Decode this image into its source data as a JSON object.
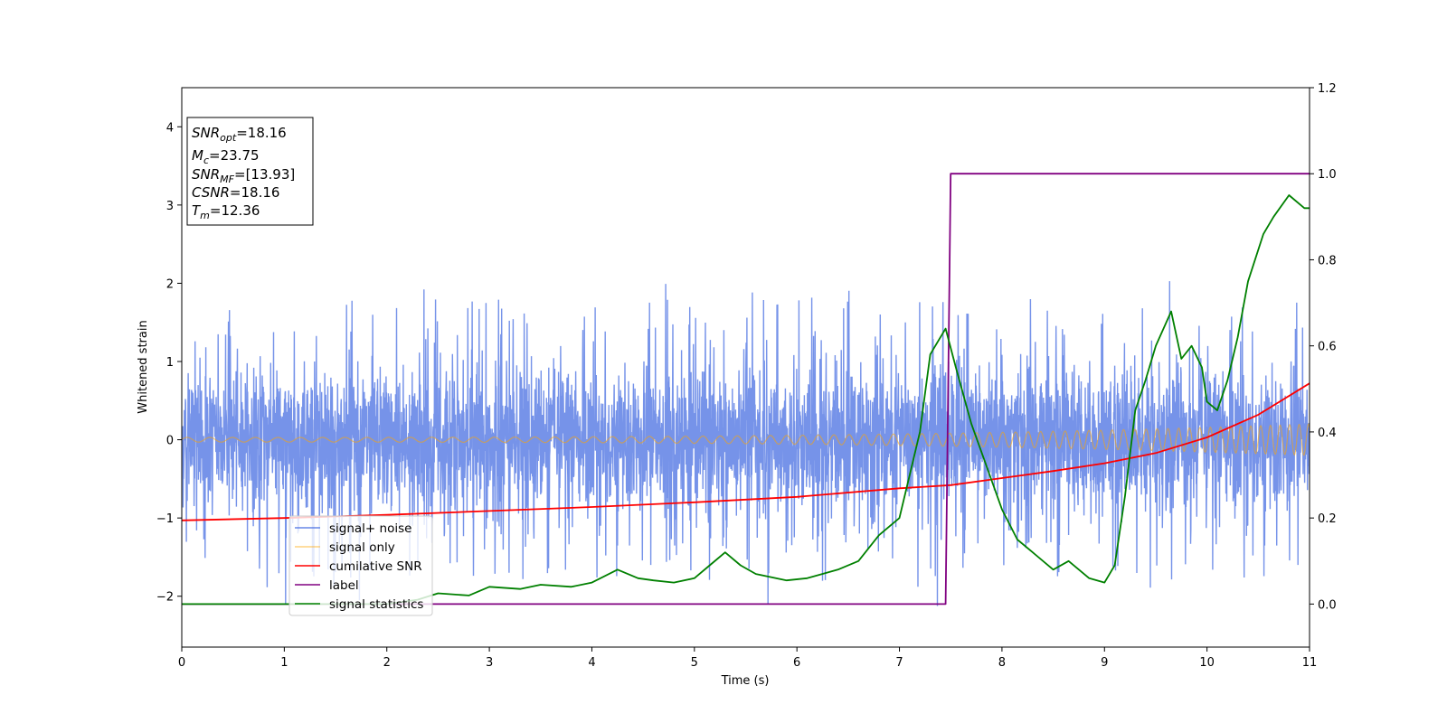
{
  "chart_data": {
    "type": "line",
    "xlabel": "Time (s)",
    "ylabel": "Whitened strain",
    "xlim": [
      0,
      11
    ],
    "ylim_left": [
      -2.65,
      4.5
    ],
    "ylim_right": [
      -0.1,
      1.2
    ],
    "x_ticks": [
      "0",
      "1",
      "2",
      "3",
      "4",
      "5",
      "6",
      "7",
      "8",
      "9",
      "10",
      "11"
    ],
    "y_ticks_left": [
      "−2",
      "−1",
      "0",
      "1",
      "2",
      "3",
      "4"
    ],
    "y_ticks_right": [
      "0.0",
      "0.2",
      "0.4",
      "0.6",
      "0.8",
      "1.0",
      "1.2"
    ],
    "grid": false,
    "legend_position": "lower-left",
    "info_box": {
      "snr_opt_base": "SNR",
      "snr_opt_sub": "opt",
      "snr_opt_value": "=18.16",
      "mc_base": "M",
      "mc_sub": "c",
      "mc_value": "=23.75",
      "snr_mf_base": "SNR",
      "snr_mf_sub": "MF",
      "snr_mf_value": "=[13.93]",
      "csnr_base": "CSNR",
      "csnr_value": "=18.16",
      "tm_base": "T",
      "tm_sub": "m",
      "tm_value": "=12.36"
    },
    "series": [
      {
        "name": "signal+ noise",
        "axis": "left",
        "color": "#4169e1",
        "note_amplitude": "noise band roughly ±1.3, spikes to ~2.1 and ~−2.2"
      },
      {
        "name": "signal only",
        "axis": "left",
        "color": "#ffa500",
        "amplitude_start": 0.03,
        "amplitude_end": 0.2,
        "freq_start_hz": 4.5,
        "freq_end_hz": 11
      },
      {
        "name": "cumilative SNR",
        "axis": "left",
        "color": "#ff0000",
        "x": [
          0,
          1,
          2,
          3,
          4,
          5,
          6,
          7,
          7.5,
          8,
          8.5,
          9,
          9.5,
          10,
          10.5,
          11
        ],
        "y": [
          -1.03,
          -1.0,
          -0.96,
          -0.91,
          -0.86,
          -0.8,
          -0.73,
          -0.62,
          -0.58,
          -0.49,
          -0.4,
          -0.3,
          -0.17,
          0.03,
          0.32,
          0.72
        ]
      },
      {
        "name": "label",
        "axis": "right",
        "color": "#800080",
        "x": [
          0,
          7.45,
          7.5,
          11
        ],
        "y": [
          0.0,
          0.0,
          1.0,
          1.0
        ]
      },
      {
        "name": "signal statistics",
        "axis": "right",
        "color": "#008000",
        "x": [
          0,
          0.5,
          1,
          1.5,
          2,
          2.3,
          2.5,
          2.8,
          3,
          3.3,
          3.5,
          3.8,
          4,
          4.25,
          4.45,
          4.6,
          4.8,
          5,
          5.15,
          5.3,
          5.45,
          5.6,
          5.9,
          6.1,
          6.4,
          6.6,
          6.8,
          7,
          7.1,
          7.2,
          7.3,
          7.35,
          7.45,
          7.55,
          7.7,
          7.85,
          8.0,
          8.15,
          8.3,
          8.5,
          8.65,
          8.85,
          9.0,
          9.1,
          9.2,
          9.3,
          9.4,
          9.5,
          9.65,
          9.75,
          9.85,
          9.95,
          10.0,
          10.1,
          10.2,
          10.3,
          10.4,
          10.55,
          10.65,
          10.8,
          10.95,
          11
        ],
        "y": [
          0.0,
          0.0,
          0.0,
          0.0,
          0.0,
          0.01,
          0.025,
          0.02,
          0.04,
          0.035,
          0.045,
          0.04,
          0.05,
          0.08,
          0.06,
          0.055,
          0.05,
          0.06,
          0.09,
          0.12,
          0.09,
          0.07,
          0.055,
          0.06,
          0.08,
          0.1,
          0.16,
          0.2,
          0.3,
          0.4,
          0.58,
          0.6,
          0.64,
          0.55,
          0.42,
          0.32,
          0.22,
          0.15,
          0.12,
          0.08,
          0.1,
          0.06,
          0.05,
          0.09,
          0.25,
          0.45,
          0.52,
          0.6,
          0.68,
          0.57,
          0.6,
          0.55,
          0.47,
          0.45,
          0.52,
          0.62,
          0.75,
          0.86,
          0.9,
          0.95,
          0.92,
          0.92
        ]
      }
    ]
  }
}
